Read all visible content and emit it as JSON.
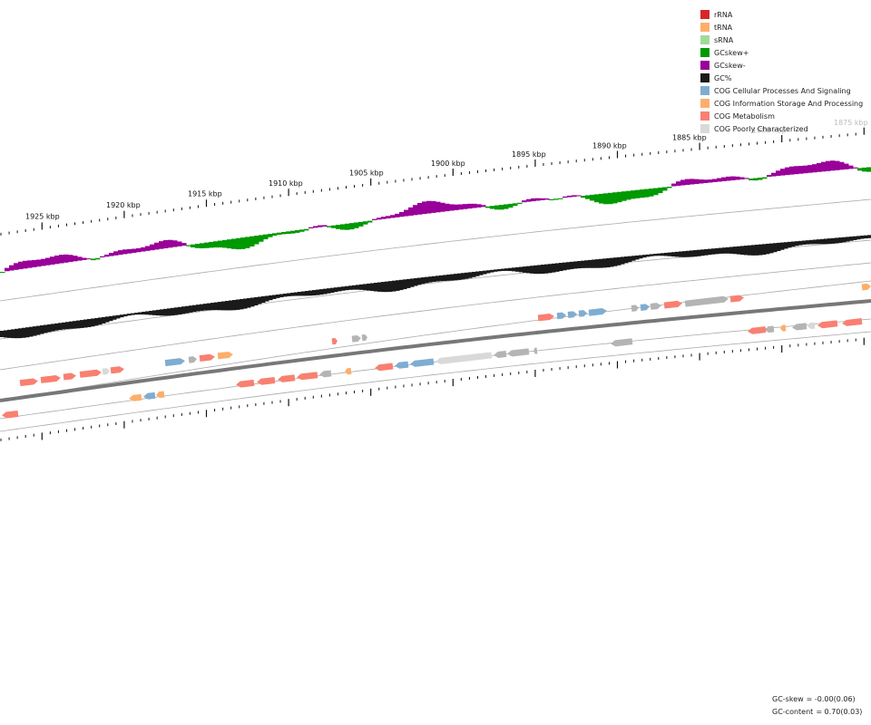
{
  "legend": [
    {
      "label": "rRNA",
      "color": "#d62728"
    },
    {
      "label": "tRNA",
      "color": "#fdae6b"
    },
    {
      "label": "sRNA",
      "color": "#a1d99b"
    },
    {
      "label": "GCskew+",
      "color": "#009900"
    },
    {
      "label": "GCskew-",
      "color": "#990099"
    },
    {
      "label": "GC%",
      "color": "#1a1a1a"
    },
    {
      "label": "COG Cellular Processes And Signaling",
      "color": "#7fadd1"
    },
    {
      "label": "COG Information Storage And Processing",
      "color": "#fdae6b"
    },
    {
      "label": "COG Metabolism",
      "color": "#f98071"
    },
    {
      "label": "COG Poorly Characterized",
      "color": "#d9d9d9"
    }
  ],
  "scale_labels": [
    "1925 kbp",
    "1920 kbp",
    "1915 kbp",
    "1910 kbp",
    "1905 kbp",
    "1900 kbp",
    "1895 kbp",
    "1890 kbp",
    "1885 kbp",
    "1880 kbp",
    "1875 kbp"
  ],
  "stats": {
    "gc_skew_label": "GC-skew",
    "gc_skew_value": "= -0.00(0.06)",
    "gc_content_label": "GC-content",
    "gc_content_value": "= 0.70(0.03)"
  },
  "colors": {
    "skew_pos": "#009900",
    "skew_neg": "#990099",
    "gc": "#1a1a1a",
    "backbone": "#777777",
    "ring": "#aaaaaa",
    "grey_gene": "#b4b4b4",
    "cellular": "#7fadd1",
    "information": "#fdae6b",
    "metabolism": "#f98071",
    "poor": "#d9d9d9"
  }
}
